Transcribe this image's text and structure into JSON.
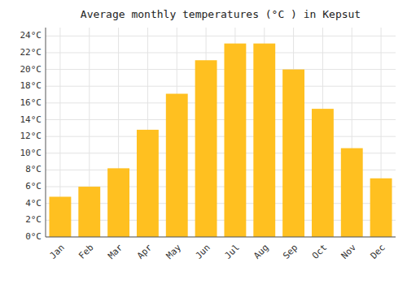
{
  "chart_data": {
    "type": "bar",
    "title": "Average monthly temperatures (°C ) in Kepsut",
    "categories": [
      "Jan",
      "Feb",
      "Mar",
      "Apr",
      "May",
      "Jun",
      "Jul",
      "Aug",
      "Sep",
      "Oct",
      "Nov",
      "Dec"
    ],
    "values": [
      4.8,
      6.0,
      8.2,
      12.8,
      17.1,
      21.1,
      23.1,
      23.1,
      20.0,
      15.3,
      10.6,
      7.0
    ],
    "color": "#FFC020",
    "ylim": [
      0,
      25
    ],
    "yticks": [
      {
        "value": 0,
        "label": "0°C"
      },
      {
        "value": 2,
        "label": "2°C"
      },
      {
        "value": 4,
        "label": "4°C"
      },
      {
        "value": 6,
        "label": "6°C"
      },
      {
        "value": 8,
        "label": "8°C"
      },
      {
        "value": 10,
        "label": "10°C"
      },
      {
        "value": 12,
        "label": "12°C"
      },
      {
        "value": 14,
        "label": "14°C"
      },
      {
        "value": 16,
        "label": "16°C"
      },
      {
        "value": 18,
        "label": "18°C"
      },
      {
        "value": 20,
        "label": "20°C"
      },
      {
        "value": 22,
        "label": "22°C"
      },
      {
        "value": 24,
        "label": "24°C"
      }
    ],
    "grid": true
  }
}
